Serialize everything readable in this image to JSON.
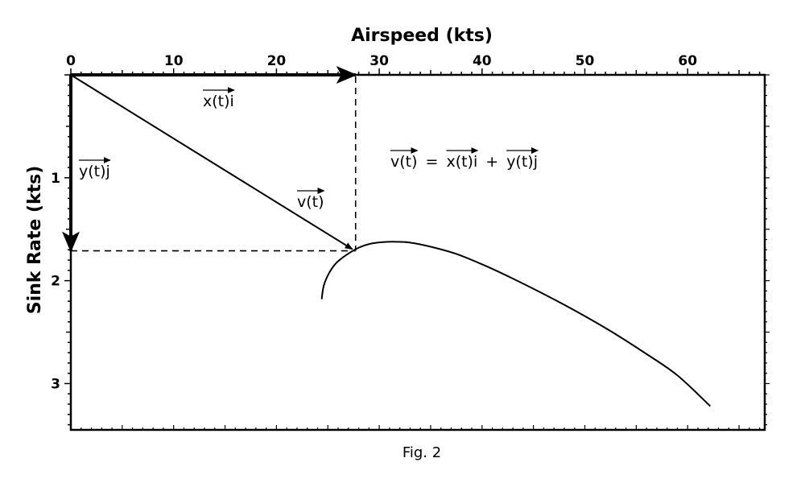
{
  "chart_data": {
    "type": "line",
    "xlabel": "Airspeed (kts)",
    "ylabel": "Sink Rate (kts)",
    "x_ticks": [
      0,
      10,
      20,
      30,
      40,
      50,
      60
    ],
    "y_ticks": [
      1,
      2,
      3
    ],
    "xlim": [
      0,
      67.5
    ],
    "ylim": [
      0,
      3.45
    ],
    "y_inverted": true,
    "x_axis_position": "top",
    "grid": false,
    "series": [
      {
        "points": [
          [
            24.4,
            2.18
          ],
          [
            24.6,
            2.05
          ],
          [
            25.1,
            1.93
          ],
          [
            25.8,
            1.83
          ],
          [
            26.8,
            1.75
          ],
          [
            28.0,
            1.68
          ],
          [
            29.2,
            1.64
          ],
          [
            30.4,
            1.625
          ],
          [
            31.6,
            1.622
          ],
          [
            33.0,
            1.63
          ],
          [
            35.0,
            1.67
          ],
          [
            37.5,
            1.74
          ],
          [
            40.2,
            1.85
          ],
          [
            43.0,
            1.98
          ],
          [
            46.0,
            2.13
          ],
          [
            49.2,
            2.3
          ],
          [
            52.5,
            2.49
          ],
          [
            55.8,
            2.7
          ],
          [
            59.0,
            2.92
          ],
          [
            62.2,
            3.22
          ]
        ]
      }
    ],
    "vectors": {
      "point": [
        27.7,
        1.71
      ],
      "x_component_label": "x(t)i",
      "y_component_label": "y(t)j",
      "velocity_label": "v(t)",
      "equation": {
        "lhs": "v(t)",
        "equals": "=",
        "term1": "x(t)i",
        "plus": "+",
        "term2": "y(t)j"
      }
    }
  },
  "caption": "Fig. 2"
}
